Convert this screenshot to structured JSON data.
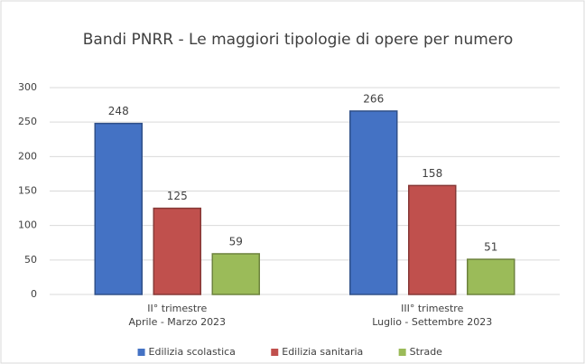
{
  "chart_data": {
    "type": "bar",
    "title": "Bandi PNRR - Le maggiori tipologie di opere per numero",
    "categories": [
      [
        "II° trimestre",
        "Aprile  - Marzo 2023"
      ],
      [
        "III° trimestre",
        "Luglio - Settembre 2023"
      ]
    ],
    "series": [
      {
        "name": "Edilizia scolastica",
        "color": "#4472c4",
        "values": [
          248,
          266
        ]
      },
      {
        "name": "Edilizia sanitaria",
        "color": "#c0504d",
        "values": [
          125,
          158
        ]
      },
      {
        "name": "Strade",
        "color": "#9bbb59",
        "values": [
          59,
          51
        ]
      }
    ],
    "ylim": [
      0,
      300
    ],
    "yticks": [
      0,
      50,
      100,
      150,
      200,
      250,
      300
    ],
    "grid": true,
    "legend": "bottom"
  }
}
